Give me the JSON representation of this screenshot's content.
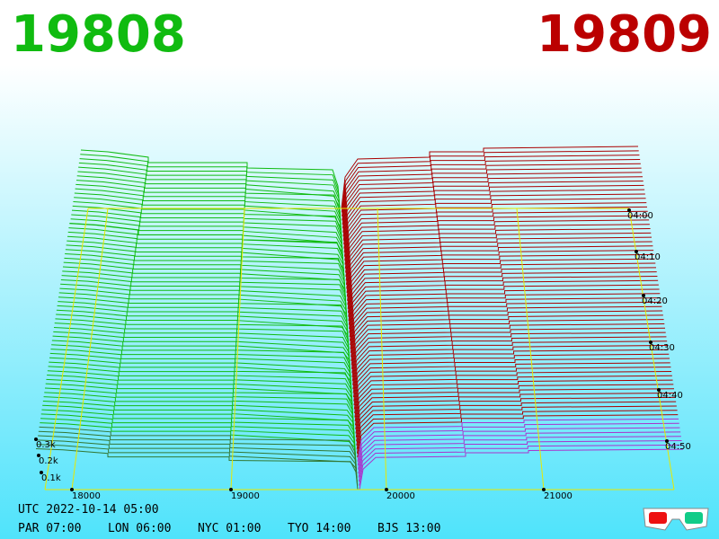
{
  "header": {
    "bid": "19808",
    "ask": "19809"
  },
  "price_axis": [
    "18000",
    "19000",
    "20000",
    "21000"
  ],
  "volume_axis": [
    "0.3k",
    "0.2k",
    "0.1k"
  ],
  "time_axis": [
    "04:00",
    "04:10",
    "04:20",
    "04:30",
    "04:40",
    "04:50"
  ],
  "footer": {
    "utc": "UTC 2022-10-14 05:00",
    "clocks": [
      "PAR 07:00",
      "LON 06:00",
      "NYC 01:00",
      "TYO 14:00",
      "BJS 13:00"
    ]
  }
}
